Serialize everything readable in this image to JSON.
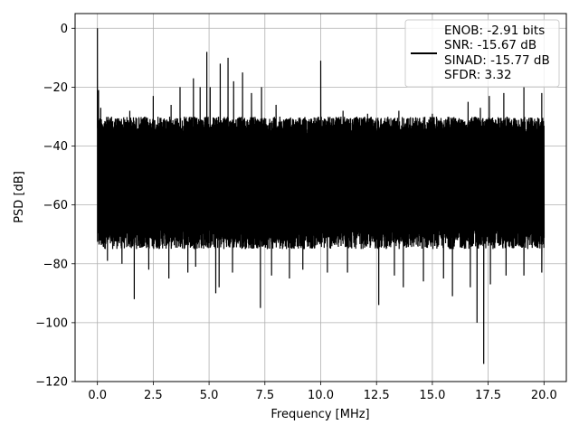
{
  "chart_data": {
    "type": "line",
    "title": "",
    "xlabel": "Frequency [MHz]",
    "ylabel": "PSD [dB]",
    "xlim": [
      -1,
      21
    ],
    "ylim": [
      -120,
      5
    ],
    "xticks": [
      0,
      2.5,
      5,
      7.5,
      10,
      12.5,
      15,
      17.5,
      20
    ],
    "xtick_labels": [
      "0.0",
      "2.5",
      "5.0",
      "7.5",
      "10.0",
      "12.5",
      "15.0",
      "17.5",
      "20.0"
    ],
    "yticks": [
      0,
      -20,
      -40,
      -60,
      -80,
      -100,
      -120
    ],
    "ytick_labels": [
      "0",
      "−20",
      "−40",
      "−60",
      "−80",
      "−100",
      "−120"
    ],
    "grid": true,
    "legend_position": "top-right",
    "legend_lines": [
      "ENOB: -2.91 bits",
      "SNR: -15.67 dB",
      "SINAD: -15.77 dB",
      "SFDR: 3.32"
    ],
    "series_color": "#000000",
    "noise_floor": {
      "top_db": -30,
      "bottom_db": -75
    },
    "x_range": [
      0,
      20
    ],
    "peaks": [
      {
        "x": 0.0,
        "y": 0
      },
      {
        "x": 0.05,
        "y": -21
      },
      {
        "x": 0.15,
        "y": -27
      },
      {
        "x": 1.45,
        "y": -28
      },
      {
        "x": 2.5,
        "y": -23
      },
      {
        "x": 3.3,
        "y": -26
      },
      {
        "x": 3.7,
        "y": -20
      },
      {
        "x": 4.3,
        "y": -17
      },
      {
        "x": 4.6,
        "y": -20
      },
      {
        "x": 4.9,
        "y": -8
      },
      {
        "x": 5.05,
        "y": -20
      },
      {
        "x": 5.5,
        "y": -12
      },
      {
        "x": 5.85,
        "y": -10
      },
      {
        "x": 6.1,
        "y": -18
      },
      {
        "x": 6.5,
        "y": -15
      },
      {
        "x": 6.9,
        "y": -22
      },
      {
        "x": 7.35,
        "y": -20
      },
      {
        "x": 8.0,
        "y": -26
      },
      {
        "x": 10.0,
        "y": -11
      },
      {
        "x": 11.0,
        "y": -28
      },
      {
        "x": 12.1,
        "y": -29
      },
      {
        "x": 13.5,
        "y": -28
      },
      {
        "x": 15.0,
        "y": -29
      },
      {
        "x": 16.6,
        "y": -25
      },
      {
        "x": 17.15,
        "y": -27
      },
      {
        "x": 17.55,
        "y": -23
      },
      {
        "x": 18.2,
        "y": -22
      },
      {
        "x": 19.1,
        "y": -20
      },
      {
        "x": 19.9,
        "y": -22
      }
    ],
    "dips": [
      {
        "x": 0.1,
        "y": -63
      },
      {
        "x": 0.45,
        "y": -79
      },
      {
        "x": 1.1,
        "y": -80
      },
      {
        "x": 1.65,
        "y": -92
      },
      {
        "x": 2.3,
        "y": -82
      },
      {
        "x": 3.2,
        "y": -85
      },
      {
        "x": 4.05,
        "y": -83
      },
      {
        "x": 4.4,
        "y": -81
      },
      {
        "x": 5.3,
        "y": -90
      },
      {
        "x": 5.45,
        "y": -88
      },
      {
        "x": 6.05,
        "y": -83
      },
      {
        "x": 7.3,
        "y": -95
      },
      {
        "x": 7.8,
        "y": -84
      },
      {
        "x": 8.6,
        "y": -85
      },
      {
        "x": 9.2,
        "y": -82
      },
      {
        "x": 10.3,
        "y": -83
      },
      {
        "x": 11.2,
        "y": -83
      },
      {
        "x": 12.6,
        "y": -94
      },
      {
        "x": 13.3,
        "y": -84
      },
      {
        "x": 13.7,
        "y": -88
      },
      {
        "x": 14.6,
        "y": -86
      },
      {
        "x": 15.5,
        "y": -85
      },
      {
        "x": 15.9,
        "y": -91
      },
      {
        "x": 16.7,
        "y": -88
      },
      {
        "x": 17.0,
        "y": -100
      },
      {
        "x": 17.3,
        "y": -114
      },
      {
        "x": 17.6,
        "y": -87
      },
      {
        "x": 18.3,
        "y": -84
      },
      {
        "x": 19.1,
        "y": -84
      },
      {
        "x": 19.9,
        "y": -83
      }
    ]
  }
}
